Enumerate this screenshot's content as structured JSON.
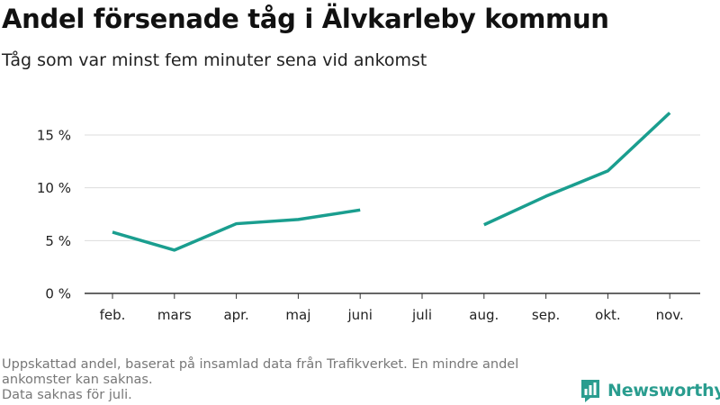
{
  "header": {
    "title": "Andel försenade tåg i Älvkarleby kommun",
    "subtitle": "Tåg som var minst fem minuter sena vid ankomst"
  },
  "footer": {
    "note_lines": [
      "Uppskattad andel, baserat på insamlad data från Trafikverket. En mindre andel",
      "ankomster kan saknas.",
      "Data saknas för juli."
    ],
    "brand": "Newsworthy"
  },
  "colors": {
    "line": "#1a9e8f",
    "grid": "#dddddd",
    "axis": "#333333",
    "brand": "#2a9d8f"
  },
  "chart_data": {
    "type": "line",
    "categories": [
      "feb.",
      "mars",
      "apr.",
      "maj",
      "juni",
      "juli",
      "aug.",
      "sep.",
      "okt.",
      "nov."
    ],
    "series": [
      {
        "values": [
          5.8,
          4.1,
          6.6,
          7.0,
          7.9,
          null,
          6.5,
          9.2,
          11.6,
          17.1
        ]
      }
    ],
    "y_ticks": [
      0,
      5,
      10,
      15
    ],
    "y_tick_labels": [
      "0 %",
      "5 %",
      "10 %",
      "15 %"
    ],
    "ylim": [
      0,
      18.5
    ],
    "grid": true,
    "xlabel": "",
    "ylabel": ""
  }
}
